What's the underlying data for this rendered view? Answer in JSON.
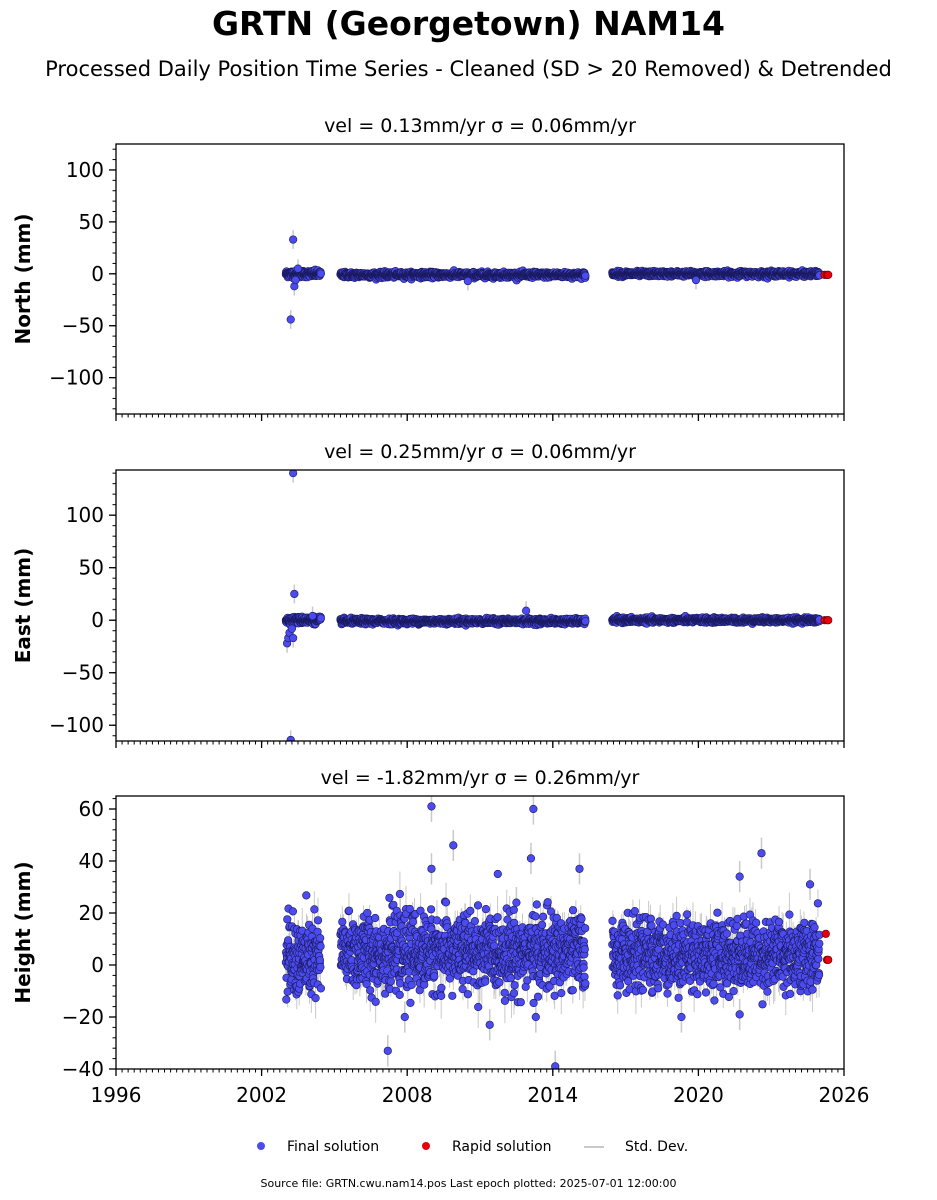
{
  "title": "GRTN (Georgetown) NAM14",
  "subtitle": "Processed Daily Position Time Series - Cleaned (SD > 20 Removed) & Detrended",
  "legend": {
    "final": "Final solution",
    "rapid": "Rapid solution",
    "stddev": "Std. Dev."
  },
  "footer": "Source file: GRTN.cwu.nam14.pos  Last epoch plotted: 2025-07-01 12:00:00",
  "colors": {
    "final": "#4b4bef",
    "rapid": "#e8000b",
    "stddev": "#c9c9c9",
    "edge": "#1a1a5e"
  },
  "chart_data": [
    {
      "type": "scatter",
      "ylabel": "North (mm)",
      "vel_label": "vel = 0.13mm/yr   σ = 0.06mm/yr",
      "xlim": [
        1996,
        2026
      ],
      "ylim": [
        -135,
        125
      ],
      "yticks": [
        -100,
        -50,
        0,
        50,
        100
      ],
      "ytick_labels": [
        "−100",
        "−50",
        "0",
        "50",
        "100"
      ],
      "xticks": [
        1996,
        2002,
        2008,
        2014,
        2020,
        2026
      ],
      "xtick_labels": [],
      "gaps": [
        [
          2004.45,
          2005.25
        ],
        [
          2015.35,
          2016.45
        ]
      ],
      "segments": [
        {
          "start": 2003.0,
          "end": 2004.45,
          "spread": 1.6,
          "offset": 0
        },
        {
          "start": 2005.25,
          "end": 2015.35,
          "spread": 1.3,
          "offset": -1
        },
        {
          "start": 2016.45,
          "end": 2025.0,
          "spread": 1.2,
          "offset": 0
        }
      ],
      "outliers": [
        [
          2003.3,
          33
        ],
        [
          2003.2,
          -44
        ],
        [
          2003.35,
          -12
        ],
        [
          2003.4,
          -6
        ],
        [
          2003.5,
          5
        ],
        [
          2010.5,
          -7
        ],
        [
          2019.9,
          -6
        ]
      ],
      "rapid": [
        [
          2025.2,
          -1
        ],
        [
          2025.3,
          -1
        ],
        [
          2025.35,
          -1
        ]
      ]
    },
    {
      "type": "scatter",
      "ylabel": "East (mm)",
      "vel_label": "vel = 0.25mm/yr   σ = 0.06mm/yr",
      "xlim": [
        1996,
        2026
      ],
      "ylim": [
        -115,
        143
      ],
      "yticks": [
        -100,
        -50,
        0,
        50,
        100
      ],
      "ytick_labels": [
        "−100",
        "−50",
        "0",
        "50",
        "100"
      ],
      "xticks": [
        1996,
        2002,
        2008,
        2014,
        2020,
        2026
      ],
      "xtick_labels": [],
      "gaps": [
        [
          2004.45,
          2005.25
        ],
        [
          2015.35,
          2016.45
        ]
      ],
      "segments": [
        {
          "start": 2003.0,
          "end": 2004.45,
          "spread": 1.6,
          "offset": 0
        },
        {
          "start": 2005.25,
          "end": 2015.35,
          "spread": 1.2,
          "offset": -1
        },
        {
          "start": 2016.45,
          "end": 2025.0,
          "spread": 1.1,
          "offset": 0
        }
      ],
      "outliers": [
        [
          2003.3,
          140
        ],
        [
          2003.35,
          25
        ],
        [
          2003.05,
          -22
        ],
        [
          2003.1,
          -17
        ],
        [
          2003.15,
          -12
        ],
        [
          2003.3,
          -17
        ],
        [
          2003.25,
          -8
        ],
        [
          2003.2,
          -114
        ],
        [
          2012.9,
          9
        ],
        [
          2004.1,
          4
        ]
      ],
      "rapid": [
        [
          2025.2,
          0
        ],
        [
          2025.3,
          0
        ],
        [
          2025.35,
          0
        ]
      ]
    },
    {
      "type": "scatter",
      "ylabel": "Height (mm)",
      "vel_label": "vel = -1.82mm/yr   σ = 0.26mm/yr",
      "xlim": [
        1996,
        2026
      ],
      "ylim": [
        -40,
        65
      ],
      "yticks": [
        -40,
        -20,
        0,
        20,
        40,
        60
      ],
      "ytick_labels": [
        "−40",
        "−20",
        "0",
        "20",
        "40",
        "60"
      ],
      "xticks": [
        1996,
        2002,
        2008,
        2014,
        2020,
        2026
      ],
      "xtick_labels": [
        "1996",
        "2002",
        "2008",
        "2014",
        "2020",
        "2026"
      ],
      "gaps": [
        [
          2004.45,
          2005.25
        ],
        [
          2015.35,
          2016.45
        ]
      ],
      "segments": [
        {
          "start": 2003.0,
          "end": 2004.45,
          "spread": 7.5,
          "offset": 2
        },
        {
          "start": 2005.25,
          "end": 2015.35,
          "spread": 7.0,
          "offset": 5
        },
        {
          "start": 2016.45,
          "end": 2025.0,
          "spread": 6.5,
          "offset": 4
        }
      ],
      "outliers": [
        [
          2009.0,
          61
        ],
        [
          2013.2,
          60
        ],
        [
          2009.9,
          46
        ],
        [
          2013.1,
          41
        ],
        [
          2022.6,
          43
        ],
        [
          2009.0,
          37
        ],
        [
          2015.1,
          37
        ],
        [
          2021.7,
          34
        ],
        [
          2024.6,
          31
        ],
        [
          2007.2,
          -33
        ],
        [
          2014.1,
          -39
        ],
        [
          2011.4,
          -23
        ],
        [
          2013.3,
          -20
        ],
        [
          2007.9,
          -20
        ],
        [
          2019.3,
          -20
        ],
        [
          2021.7,
          -19
        ],
        [
          2012.5,
          24
        ]
      ],
      "rapid": [
        [
          2025.25,
          12
        ],
        [
          2025.3,
          2
        ],
        [
          2025.35,
          2
        ]
      ]
    }
  ]
}
